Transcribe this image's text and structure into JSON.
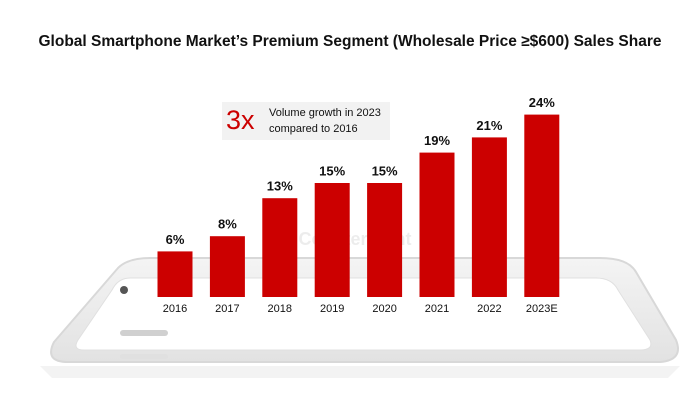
{
  "chart_data": {
    "type": "bar",
    "title": "Global Smartphone Market’s Premium Segment (Wholesale Price ≥$600) Sales Share",
    "categories": [
      "2016",
      "2017",
      "2018",
      "2019",
      "2020",
      "2021",
      "2022",
      "2023E"
    ],
    "values": [
      6,
      8,
      13,
      15,
      15,
      19,
      21,
      24
    ],
    "value_labels": [
      "6%",
      "8%",
      "13%",
      "15%",
      "15%",
      "19%",
      "21%",
      "24%"
    ],
    "color": "#cc0000",
    "annotation": {
      "highlight": "3x",
      "lines": [
        "Volume growth in 2023",
        "compared to 2016"
      ]
    },
    "watermark": "Counterpoint"
  }
}
